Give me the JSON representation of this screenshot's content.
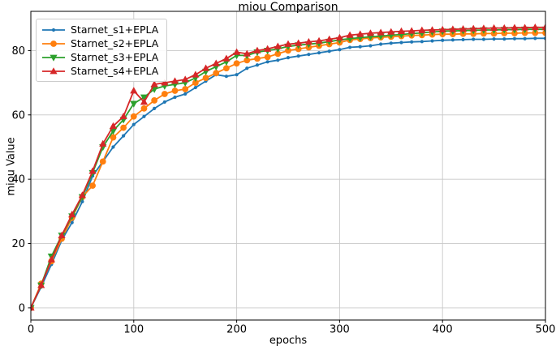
{
  "chart_data": {
    "type": "line",
    "title": "miou Comparison",
    "xlabel": "epochs",
    "ylabel": "miou Value",
    "xlim": [
      0,
      500
    ],
    "ylim": [
      -3.8,
      92.2
    ],
    "x_ticks": [
      0,
      100,
      200,
      300,
      400,
      500
    ],
    "y_ticks": [
      0,
      20,
      40,
      60,
      80
    ],
    "grid": true,
    "legend_position": "upper left",
    "grid_color": "#c8c8c8",
    "x": [
      0,
      10,
      20,
      30,
      40,
      50,
      60,
      70,
      80,
      90,
      100,
      110,
      120,
      130,
      140,
      150,
      160,
      170,
      180,
      190,
      200,
      210,
      220,
      230,
      240,
      250,
      260,
      270,
      280,
      290,
      300,
      310,
      320,
      330,
      340,
      350,
      360,
      370,
      380,
      390,
      400,
      410,
      420,
      430,
      440,
      450,
      460,
      470,
      480,
      490,
      500
    ],
    "series": [
      {
        "name": "Starnet_s1+EPLA",
        "color": "#1f77b4",
        "marker": "point",
        "values": [
          0,
          6.5,
          13.5,
          21,
          26.5,
          33,
          41,
          45.5,
          50,
          53.5,
          57,
          59.5,
          62,
          64,
          65.5,
          66.5,
          68.5,
          70.5,
          72.5,
          72,
          72.5,
          74.5,
          75.5,
          76.5,
          77,
          77.8,
          78.3,
          78.8,
          79.3,
          79.8,
          80.3,
          81,
          81.2,
          81.5,
          82,
          82.3,
          82.5,
          82.7,
          82.8,
          83,
          83.2,
          83.3,
          83.4,
          83.5,
          83.5,
          83.6,
          83.6,
          83.7,
          83.7,
          83.8,
          83.8
        ]
      },
      {
        "name": "Starnet_s2+EPLA",
        "color": "#ff7f0e",
        "marker": "circle",
        "values": [
          0,
          7.5,
          14.5,
          21.5,
          28,
          34.5,
          38,
          45.5,
          53,
          56,
          59.5,
          62,
          64.5,
          66.5,
          67.5,
          68,
          70,
          71.5,
          73,
          74.5,
          76,
          77,
          77.5,
          78,
          79,
          80,
          80.5,
          81,
          81.5,
          82,
          82.5,
          83.3,
          83.6,
          83.9,
          84.1,
          84.3,
          84.5,
          84.7,
          84.8,
          85,
          85.1,
          85.1,
          85.2,
          85.2,
          85.3,
          85.3,
          85.4,
          85.4,
          85.5,
          85.5,
          85.5
        ]
      },
      {
        "name": "Starnet_s3+EPLA",
        "color": "#2ca02c",
        "marker": "triangle-down",
        "values": [
          0,
          7,
          16,
          22.5,
          28.5,
          34.5,
          42,
          50,
          55,
          58.5,
          63.5,
          65.5,
          68,
          69,
          69.5,
          70,
          71.5,
          73.5,
          75,
          76.5,
          78.5,
          78.5,
          79.5,
          80,
          80.5,
          81.3,
          81.7,
          82,
          82.3,
          82.8,
          83.3,
          83.7,
          84,
          84.3,
          84.5,
          84.8,
          85,
          85.3,
          85.5,
          85.8,
          86,
          86.1,
          86.2,
          86.3,
          86.4,
          86.4,
          86.5,
          86.5,
          86.6,
          86.6,
          86.6
        ]
      },
      {
        "name": "Starnet_s4+EPLA",
        "color": "#d62728",
        "marker": "triangle-up",
        "values": [
          0,
          7,
          15,
          22.5,
          29,
          35,
          42.5,
          51,
          56.5,
          59.5,
          67.5,
          64,
          69.5,
          70,
          70.5,
          71,
          72.5,
          74.5,
          76,
          77.5,
          79.5,
          79,
          80,
          80.5,
          81.3,
          82,
          82.3,
          82.7,
          83,
          83.5,
          84,
          84.8,
          85.1,
          85.4,
          85.6,
          85.8,
          86,
          86.1,
          86.3,
          86.4,
          86.5,
          86.6,
          86.7,
          86.8,
          86.9,
          87,
          87,
          87.1,
          87.1,
          87.2,
          87.2
        ]
      }
    ]
  }
}
